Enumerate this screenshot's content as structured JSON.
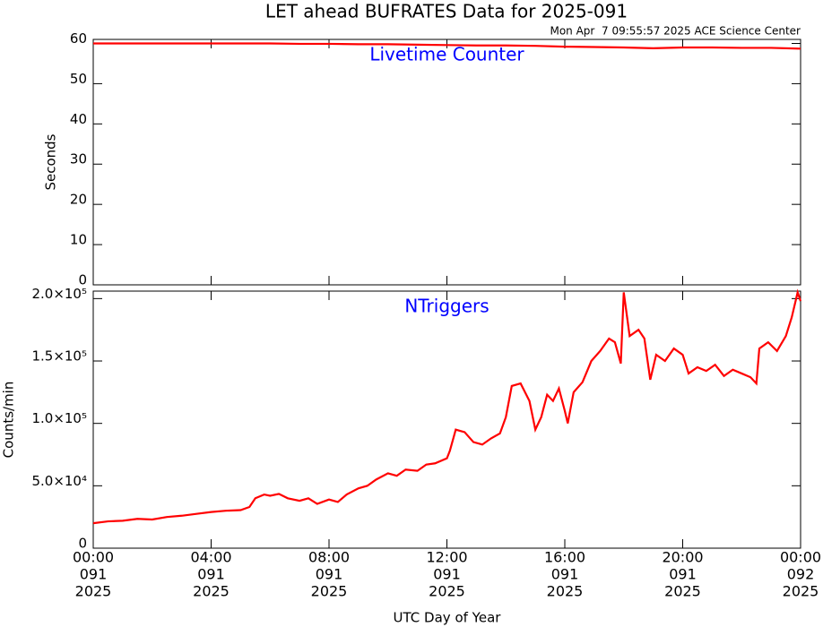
{
  "chart_data": [
    {
      "type": "line",
      "title": "LET ahead BUFRATES Data for 2025-091",
      "subtitle": "Mon Apr  7 09:55:57 2025 ACE Science Center",
      "annotation": "Livetime Counter",
      "y_label": "Seconds",
      "color": "#ff0000",
      "annotation_color": "#0000ff",
      "x": [
        0,
        1,
        2,
        3,
        4,
        5,
        6,
        7,
        8,
        9,
        10,
        11,
        12,
        13,
        14,
        15,
        16,
        17,
        18,
        19,
        20,
        21,
        22,
        23,
        24
      ],
      "values": [
        60,
        60,
        60,
        60,
        60,
        60,
        60,
        59.9,
        59.9,
        59.8,
        59.8,
        59.7,
        59.6,
        59.5,
        59.5,
        59.4,
        59.2,
        59.1,
        59,
        58.8,
        59,
        59,
        58.9,
        58.9,
        58.7
      ],
      "xlim": [
        0,
        24
      ],
      "xticks": [
        0,
        4,
        8,
        12,
        16,
        20,
        24
      ],
      "ylim": [
        0,
        61
      ],
      "yticks": [
        0,
        10,
        20,
        30,
        40,
        50,
        60
      ]
    },
    {
      "type": "line",
      "annotation": "NTriggers",
      "y_label": "Counts/min",
      "x_label": "UTC Day of Year",
      "color": "#ff0000",
      "annotation_color": "#0000ff",
      "x": [
        0,
        0.5,
        1,
        1.5,
        2,
        2.5,
        3,
        3.5,
        4,
        4.5,
        5,
        5.3,
        5.5,
        5.8,
        6,
        6.3,
        6.6,
        7,
        7.3,
        7.6,
        8,
        8.3,
        8.6,
        9,
        9.3,
        9.6,
        10,
        10.3,
        10.6,
        11,
        11.3,
        11.6,
        12,
        12.1,
        12.3,
        12.6,
        12.9,
        13.2,
        13.5,
        13.8,
        14,
        14.2,
        14.5,
        14.8,
        15,
        15.2,
        15.4,
        15.6,
        15.8,
        16,
        16.1,
        16.3,
        16.6,
        16.9,
        17.2,
        17.5,
        17.7,
        17.9,
        18,
        18.2,
        18.5,
        18.7,
        18.9,
        19.1,
        19.4,
        19.7,
        20,
        20.2,
        20.5,
        20.8,
        21.1,
        21.4,
        21.7,
        22,
        22.3,
        22.5,
        22.6,
        22.9,
        23.2,
        23.5,
        23.7,
        23.9,
        24
      ],
      "values": [
        20000,
        21500,
        22000,
        23500,
        23000,
        25000,
        26000,
        27500,
        29000,
        30000,
        30500,
        33000,
        40000,
        43000,
        42000,
        43500,
        40000,
        38000,
        40000,
        35500,
        39000,
        37000,
        43000,
        48000,
        50000,
        55000,
        60000,
        58000,
        63000,
        62000,
        67000,
        68000,
        72000,
        78000,
        95000,
        93000,
        85000,
        83000,
        88000,
        92000,
        105000,
        130000,
        132000,
        118000,
        95000,
        105000,
        123000,
        118000,
        128000,
        110000,
        100000,
        125000,
        133000,
        150000,
        158000,
        168000,
        165000,
        148000,
        205000,
        170000,
        175000,
        168000,
        135000,
        155000,
        150000,
        160000,
        155000,
        140000,
        145000,
        142000,
        147000,
        138000,
        143000,
        140000,
        137000,
        132000,
        160000,
        165000,
        158000,
        170000,
        185000,
        205000,
        198000
      ],
      "xlim": [
        0,
        24
      ],
      "xticks": [
        {
          "value": 0,
          "label": [
            "00:00",
            "091",
            "2025"
          ]
        },
        {
          "value": 4,
          "label": [
            "04:00",
            "091",
            "2025"
          ]
        },
        {
          "value": 8,
          "label": [
            "08:00",
            "091",
            "2025"
          ]
        },
        {
          "value": 12,
          "label": [
            "12:00",
            "091",
            "2025"
          ]
        },
        {
          "value": 16,
          "label": [
            "16:00",
            "091",
            "2025"
          ]
        },
        {
          "value": 20,
          "label": [
            "20:00",
            "091",
            "2025"
          ]
        },
        {
          "value": 24,
          "label": [
            "00:00",
            "092",
            "2025"
          ]
        }
      ],
      "ylim": [
        0,
        206000
      ],
      "yticks": [
        0,
        {
          "value": 50000,
          "label": "5.0×10⁴"
        },
        {
          "value": 100000,
          "label": "1.0×10⁵"
        },
        {
          "value": 150000,
          "label": "1.5×10⁵"
        },
        {
          "value": 200000,
          "label": "2.0×10⁵"
        }
      ]
    }
  ]
}
